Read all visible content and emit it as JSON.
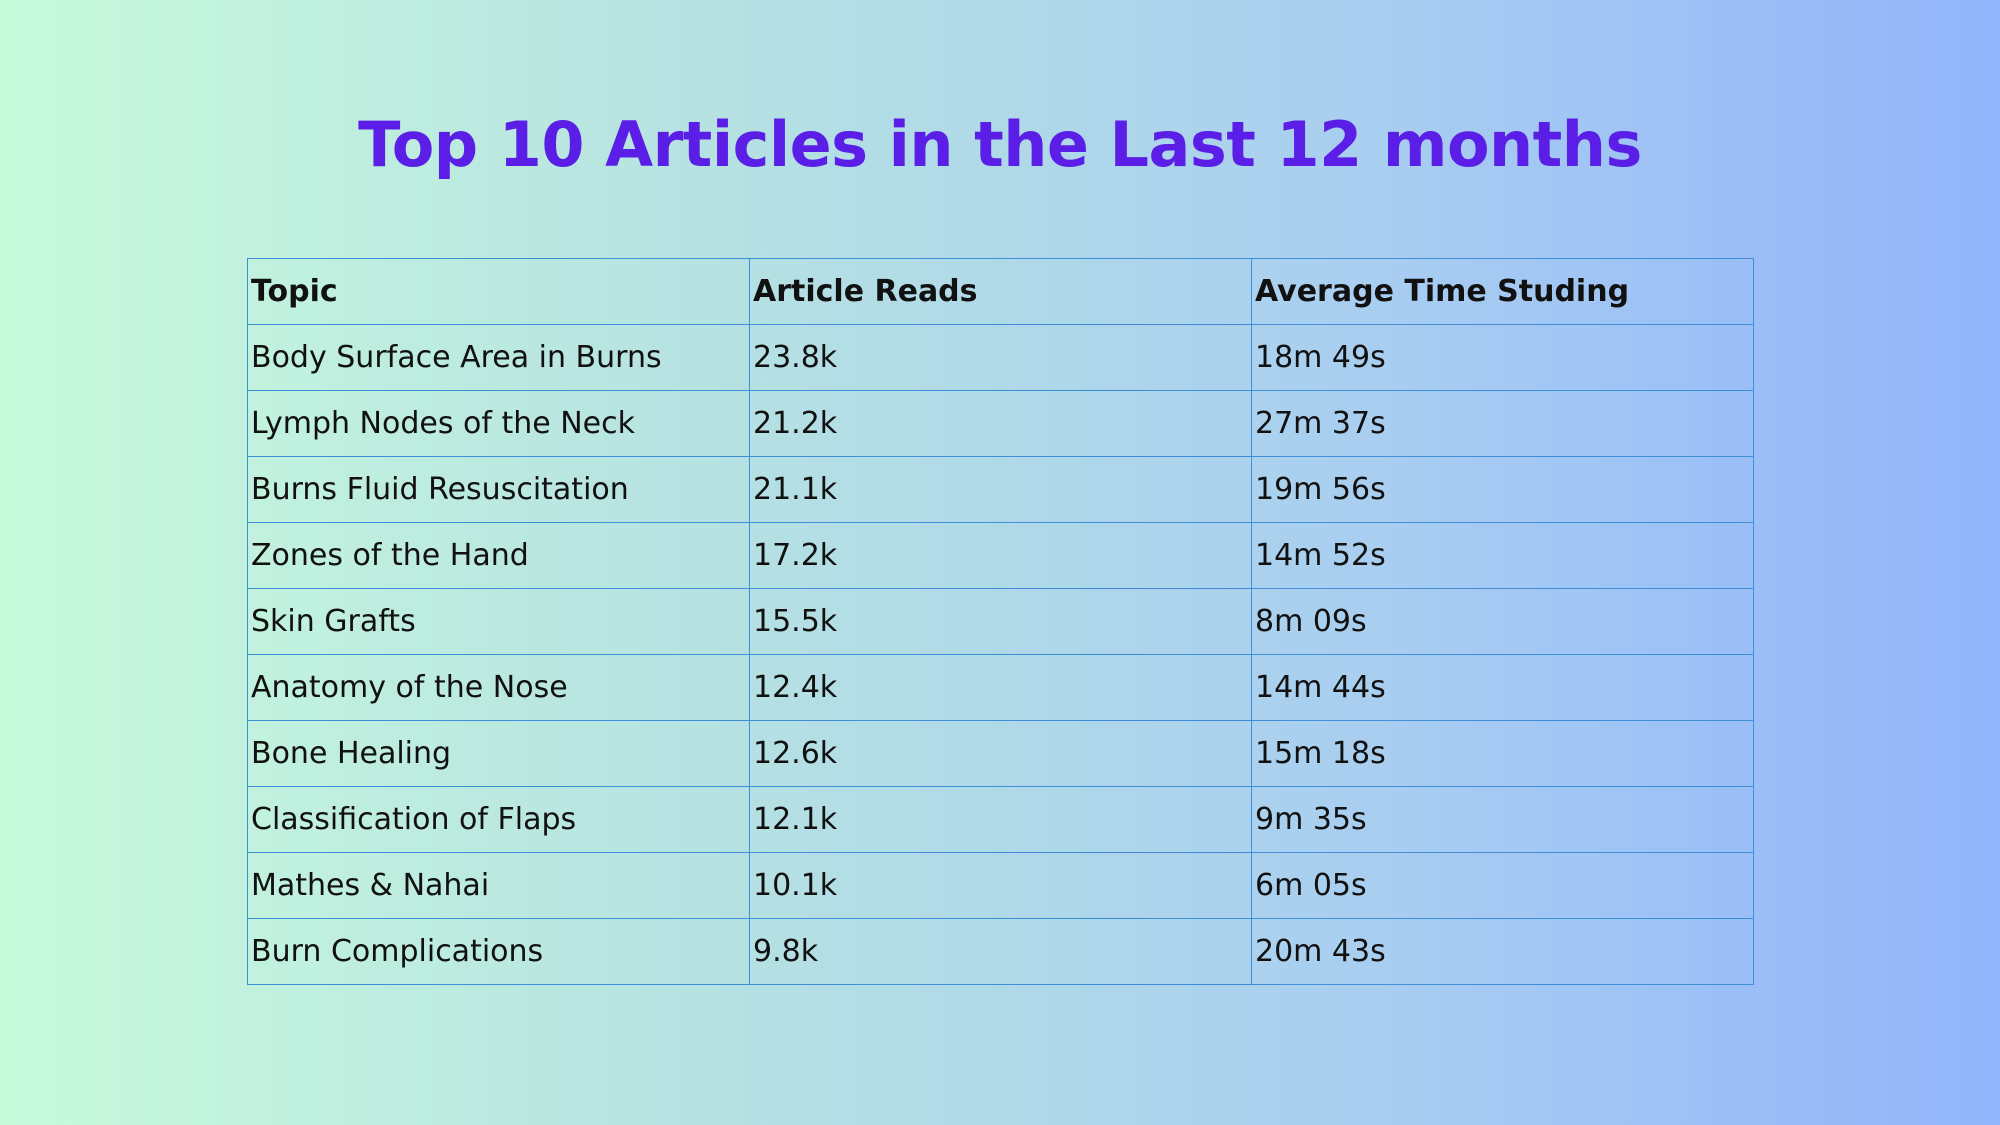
{
  "chart_data": {
    "type": "table",
    "title": "Top 10 Articles in the Last 12 months",
    "columns": [
      "Topic",
      "Article Reads",
      "Average Time Studing"
    ],
    "rows": [
      [
        "Body Surface Area in Burns",
        "23.8k",
        "18m 49s"
      ],
      [
        "Lymph Nodes of the Neck",
        "21.2k",
        "27m 37s"
      ],
      [
        "Burns Fluid Resuscitation",
        "21.1k",
        "19m 56s"
      ],
      [
        "Zones of the Hand",
        "17.2k",
        "14m 52s"
      ],
      [
        "Skin Grafts",
        "15.5k",
        "8m 09s"
      ],
      [
        "Anatomy of the Nose",
        "12.4k",
        "14m 44s"
      ],
      [
        "Bone Healing",
        "12.6k",
        "15m 18s"
      ],
      [
        "Classification of Flaps",
        "12.1k",
        "9m 35s"
      ],
      [
        "Mathes & Nahai",
        "10.1k",
        "6m 05s"
      ],
      [
        "Burn Complications",
        "9.8k",
        "20m 43s"
      ]
    ]
  },
  "colors": {
    "title": "#5b1ee6",
    "border": "#3f8ed8",
    "text": "#111111",
    "background_start": "#c8fbdc",
    "background_end": "#92b4fb"
  }
}
